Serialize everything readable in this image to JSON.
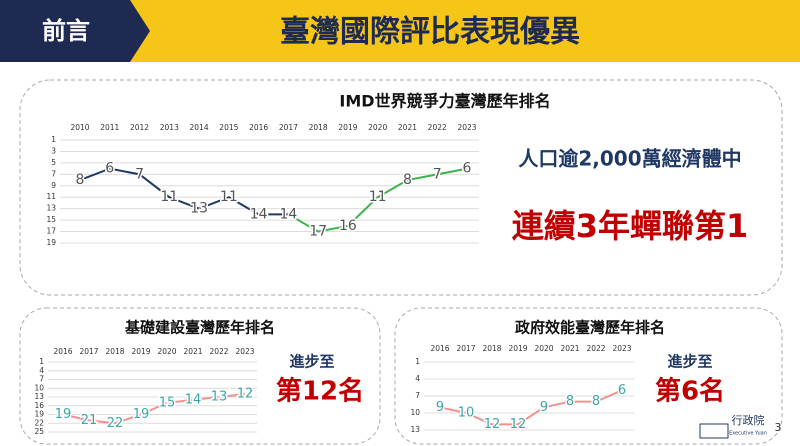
{
  "header": {
    "section": "前言",
    "title": "臺灣國際評比表現優異"
  },
  "chart_data": [
    {
      "type": "line",
      "title": "IMD世界競爭力臺灣歷年排名",
      "categories": [
        "2010",
        "2011",
        "2012",
        "2013",
        "2014",
        "2015",
        "2016",
        "2017",
        "2018",
        "2019",
        "2020",
        "2021",
        "2022",
        "2023"
      ],
      "series": [
        {
          "color": "#1f3864",
          "values": [
            8,
            6,
            7,
            11,
            13,
            11,
            14,
            14,
            null,
            null,
            null,
            null,
            null,
            null
          ]
        },
        {
          "color": "#3cb44b",
          "values": [
            null,
            null,
            null,
            null,
            null,
            null,
            null,
            14,
            17,
            16,
            11,
            8,
            7,
            6
          ]
        }
      ],
      "ylim": [
        1,
        19
      ],
      "yticks": [
        1,
        3,
        5,
        7,
        9,
        11,
        13,
        15,
        17,
        19
      ],
      "y_reversed": true,
      "grid": true,
      "label_color": "#555555",
      "annotations": [
        "人口逾2,000萬經濟體中",
        "連續3年蟬聯第1"
      ]
    },
    {
      "type": "line",
      "title": "基礎建設臺灣歷年排名",
      "categories": [
        "2016",
        "2017",
        "2018",
        "2019",
        "2020",
        "2021",
        "2022",
        "2023"
      ],
      "series": [
        {
          "color": "#f29191",
          "values": [
            19,
            21,
            22,
            19,
            15,
            14,
            13,
            12
          ]
        }
      ],
      "ylim": [
        1,
        25
      ],
      "yticks": [
        1,
        4,
        7,
        10,
        13,
        16,
        19,
        22,
        25
      ],
      "y_reversed": true,
      "grid": true,
      "label_color": "#3aa6a6",
      "annotations": [
        "進步至",
        "第12名"
      ]
    },
    {
      "type": "line",
      "title": "政府效能臺灣歷年排名",
      "categories": [
        "2016",
        "2017",
        "2018",
        "2019",
        "2020",
        "2021",
        "2022",
        "2023"
      ],
      "series": [
        {
          "color": "#f29191",
          "values": [
            9,
            10,
            12,
            12,
            9,
            8,
            8,
            6
          ]
        }
      ],
      "ylim": [
        1,
        13
      ],
      "yticks": [
        1,
        4,
        7,
        10,
        13
      ],
      "y_reversed": true,
      "grid": true,
      "label_color": "#3aa6a6",
      "annotations": [
        "進步至",
        "第6名"
      ]
    }
  ],
  "footer": {
    "logo": "行政院",
    "logo_sub": "Executive Yuan",
    "page": "3"
  }
}
